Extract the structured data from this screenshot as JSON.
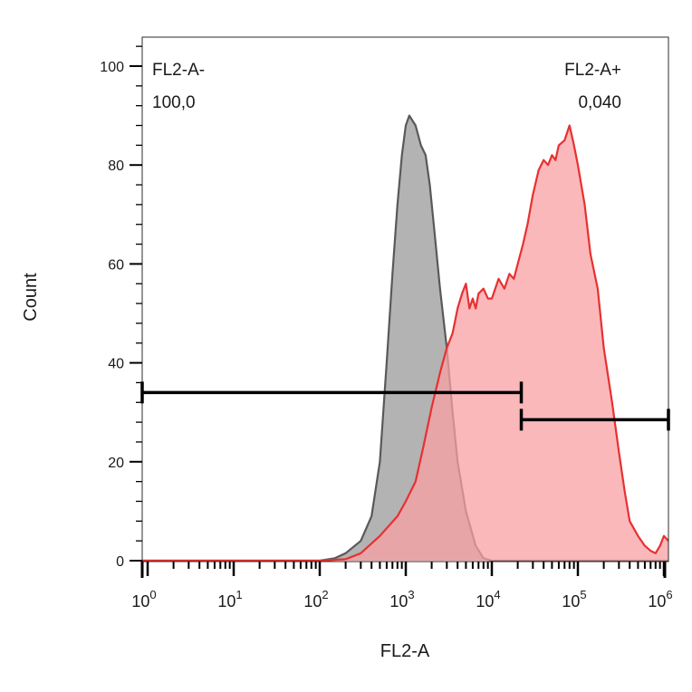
{
  "chart_data": {
    "type": "area",
    "xlabel": "FL2-A",
    "ylabel": "Count",
    "x_scale": "log",
    "xlim": [
      0.5,
      1200000
    ],
    "ylim": [
      0,
      105
    ],
    "y_ticks": [
      0,
      20,
      40,
      60,
      80,
      100
    ],
    "x_ticks": [
      {
        "base": "10",
        "exp": "0",
        "value": 1
      },
      {
        "base": "10",
        "exp": "1",
        "value": 10
      },
      {
        "base": "10",
        "exp": "2",
        "value": 100
      },
      {
        "base": "10",
        "exp": "3",
        "value": 1000
      },
      {
        "base": "10",
        "exp": "4",
        "value": 10000
      },
      {
        "base": "10",
        "exp": "5",
        "value": 100000
      },
      {
        "base": "10",
        "exp": "6",
        "value": 1000000
      }
    ],
    "series": [
      {
        "color": "#595959",
        "fill": "#a6a6a6",
        "points": [
          [
            0.5,
            0
          ],
          [
            100,
            0
          ],
          [
            150,
            0.5
          ],
          [
            200,
            1.5
          ],
          [
            300,
            4
          ],
          [
            400,
            9
          ],
          [
            500,
            20
          ],
          [
            600,
            40
          ],
          [
            700,
            58
          ],
          [
            800,
            72
          ],
          [
            900,
            82
          ],
          [
            1000,
            88
          ],
          [
            1100,
            90
          ],
          [
            1300,
            88
          ],
          [
            1500,
            84
          ],
          [
            1700,
            82
          ],
          [
            1900,
            76
          ],
          [
            2200,
            65
          ],
          [
            2500,
            55
          ],
          [
            3000,
            43
          ],
          [
            3500,
            30
          ],
          [
            4000,
            20
          ],
          [
            5000,
            10
          ],
          [
            6500,
            3
          ],
          [
            8000,
            0.5
          ],
          [
            10000,
            0
          ],
          [
            1200000,
            0
          ]
        ]
      },
      {
        "color": "#e83030",
        "fill": "#f8a0a4",
        "points": [
          [
            0.5,
            0
          ],
          [
            100,
            0
          ],
          [
            200,
            0.3
          ],
          [
            300,
            1.5
          ],
          [
            500,
            5
          ],
          [
            800,
            9
          ],
          [
            1000,
            12
          ],
          [
            1300,
            16
          ],
          [
            1600,
            23
          ],
          [
            2000,
            31
          ],
          [
            2500,
            38
          ],
          [
            3000,
            43
          ],
          [
            3500,
            46
          ],
          [
            4000,
            51
          ],
          [
            4500,
            54
          ],
          [
            5000,
            56
          ],
          [
            5500,
            51
          ],
          [
            6000,
            53
          ],
          [
            6500,
            51
          ],
          [
            7000,
            54
          ],
          [
            8000,
            55
          ],
          [
            9000,
            53
          ],
          [
            10000,
            53
          ],
          [
            12000,
            57
          ],
          [
            14000,
            55
          ],
          [
            16000,
            58
          ],
          [
            18000,
            57
          ],
          [
            20000,
            60
          ],
          [
            23000,
            64
          ],
          [
            26000,
            68
          ],
          [
            30000,
            74
          ],
          [
            35000,
            79
          ],
          [
            40000,
            81
          ],
          [
            45000,
            80
          ],
          [
            50000,
            82
          ],
          [
            55000,
            81
          ],
          [
            60000,
            84
          ],
          [
            70000,
            85
          ],
          [
            80000,
            88
          ],
          [
            90000,
            84
          ],
          [
            100000,
            80
          ],
          [
            120000,
            72
          ],
          [
            140000,
            62
          ],
          [
            170000,
            55
          ],
          [
            200000,
            43
          ],
          [
            250000,
            32
          ],
          [
            300000,
            22
          ],
          [
            350000,
            14
          ],
          [
            400000,
            8
          ],
          [
            500000,
            5
          ],
          [
            600000,
            3
          ],
          [
            700000,
            2
          ],
          [
            800000,
            1.5
          ],
          [
            900000,
            3
          ],
          [
            1000000,
            5
          ],
          [
            1200000,
            4
          ]
        ]
      }
    ],
    "gates": [
      {
        "name": "FL2-A-",
        "value": "100,0",
        "x_from": 0.5,
        "x_to": 22000,
        "y": 34
      },
      {
        "name": "FL2-A+",
        "value": "0,040",
        "x_from": 22000,
        "x_to": 1200000,
        "y": 28.5
      }
    ]
  }
}
